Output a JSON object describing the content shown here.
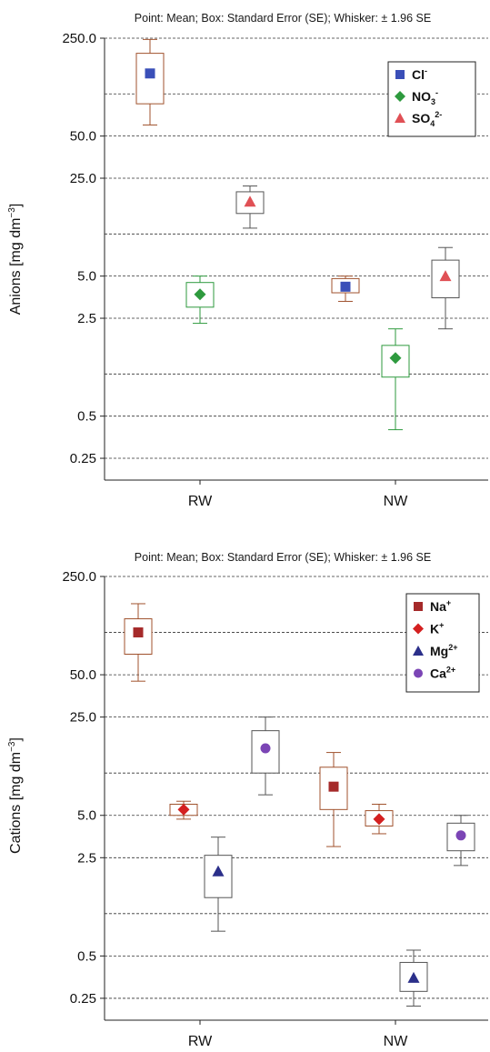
{
  "chart_data": [
    {
      "type": "box",
      "title": "Point: Mean; Box: Standard Error (SE); Whisker: ± 1.96 SE",
      "ylabel_main": "Anions [mg dm",
      "ylabel_sup": "−3",
      "ylabel_end": "]",
      "yscale": "log",
      "ylim": [
        0.18,
        250
      ],
      "yticks": [
        250.0,
        50.0,
        25.0,
        5.0,
        2.5,
        0.5,
        0.25
      ],
      "ytick_labels": [
        "250.0",
        "50.0",
        "25.0",
        "5.0",
        "2.5",
        "0.5",
        "0.25"
      ],
      "grid_dashed_at": [
        250.0,
        100.0,
        50.0,
        25.0,
        10.0,
        5.0,
        2.5,
        1.0,
        0.5,
        0.25
      ],
      "categories": [
        "RW",
        "NW"
      ],
      "legend_position": "top-right",
      "series": [
        {
          "name": "Cl",
          "sup": "-",
          "sub": "",
          "color": "#3a4fb8",
          "box_color": "#a0522d",
          "marker": "square",
          "points": [
            {
              "category": "RW",
              "mean": 140,
              "se_low": 85,
              "se_high": 195,
              "whisker_low": 60,
              "whisker_high": 245
            },
            {
              "category": "NW",
              "mean": 4.2,
              "se_low": 3.8,
              "se_high": 4.8,
              "whisker_low": 3.3,
              "whisker_high": 5.0
            }
          ]
        },
        {
          "name": "NO",
          "sub": "3",
          "sup": "-",
          "color": "#2e9a3e",
          "box_color": "#2e9a3e",
          "marker": "diamond",
          "points": [
            {
              "category": "RW",
              "mean": 3.7,
              "se_low": 3.0,
              "se_high": 4.5,
              "whisker_low": 2.3,
              "whisker_high": 5.0
            },
            {
              "category": "NW",
              "mean": 1.3,
              "se_low": 0.95,
              "se_high": 1.6,
              "whisker_low": 0.4,
              "whisker_high": 2.1
            }
          ]
        },
        {
          "name": "SO",
          "sub": "4",
          "sup": "2-",
          "color": "#e05055",
          "box_color": "#555555",
          "marker": "triangle",
          "points": [
            {
              "category": "RW",
              "mean": 17,
              "se_low": 14,
              "se_high": 20,
              "whisker_low": 11,
              "whisker_high": 22
            },
            {
              "category": "NW",
              "mean": 5.0,
              "se_low": 3.5,
              "se_high": 6.5,
              "whisker_low": 2.1,
              "whisker_high": 8.0
            }
          ]
        }
      ]
    },
    {
      "type": "box",
      "title": "Point: Mean; Box: Standard Error (SE); Whisker: ± 1.96 SE",
      "ylabel_main": "Cations [mg dm",
      "ylabel_sup": "−3",
      "ylabel_end": "]",
      "yscale": "log",
      "ylim": [
        0.18,
        250
      ],
      "yticks": [
        250.0,
        50.0,
        25.0,
        5.0,
        2.5,
        0.5,
        0.25
      ],
      "ytick_labels": [
        "250.0",
        "50.0",
        "25.0",
        "5.0",
        "2.5",
        "0.5",
        "0.25"
      ],
      "grid_dashed_at": [
        250.0,
        100.0,
        50.0,
        25.0,
        10.0,
        5.0,
        2.5,
        1.0,
        0.5,
        0.25
      ],
      "categories": [
        "RW",
        "NW"
      ],
      "legend_position": "top-right",
      "series": [
        {
          "name": "Na",
          "sub": "",
          "sup": "+",
          "color": "#a52a2a",
          "box_color": "#a0522d",
          "marker": "square",
          "points": [
            {
              "category": "RW",
              "mean": 100,
              "se_low": 70,
              "se_high": 125,
              "whisker_low": 45,
              "whisker_high": 160
            },
            {
              "category": "NW",
              "mean": 8.0,
              "se_low": 5.5,
              "se_high": 11,
              "whisker_low": 3.0,
              "whisker_high": 14
            }
          ]
        },
        {
          "name": "K",
          "sub": "",
          "sup": "+",
          "color": "#d42020",
          "box_color": "#a0522d",
          "marker": "diamond",
          "points": [
            {
              "category": "RW",
              "mean": 5.5,
              "se_low": 5.0,
              "se_high": 6.0,
              "whisker_low": 4.7,
              "whisker_high": 6.3
            },
            {
              "category": "NW",
              "mean": 4.7,
              "se_low": 4.2,
              "se_high": 5.4,
              "whisker_low": 3.7,
              "whisker_high": 6.0
            }
          ]
        },
        {
          "name": "Mg",
          "sub": "",
          "sup": "2+",
          "color": "#2b2f8a",
          "box_color": "#555555",
          "marker": "triangle",
          "points": [
            {
              "category": "RW",
              "mean": 2.0,
              "se_low": 1.3,
              "se_high": 2.6,
              "whisker_low": 0.75,
              "whisker_high": 3.5
            },
            {
              "category": "NW",
              "mean": 0.35,
              "se_low": 0.28,
              "se_high": 0.45,
              "whisker_low": 0.22,
              "whisker_high": 0.55
            }
          ]
        },
        {
          "name": "Ca",
          "sub": "",
          "sup": "2+",
          "color": "#7b45b5",
          "box_color": "#555555",
          "marker": "circle",
          "points": [
            {
              "category": "RW",
              "mean": 15,
              "se_low": 10,
              "se_high": 20,
              "whisker_low": 7,
              "whisker_high": 25
            },
            {
              "category": "NW",
              "mean": 3.6,
              "se_low": 2.8,
              "se_high": 4.4,
              "whisker_low": 2.2,
              "whisker_high": 5.0
            }
          ]
        }
      ]
    }
  ]
}
